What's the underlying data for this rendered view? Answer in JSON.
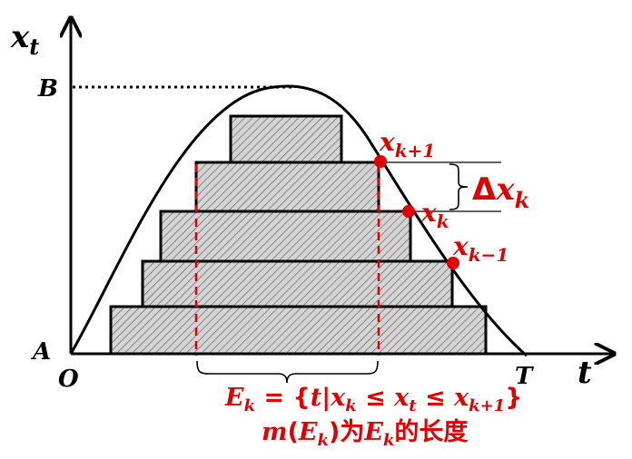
{
  "axes": {
    "y_label": "x",
    "y_label_sub": "t",
    "x_label": "t",
    "origin": "O",
    "A": "A",
    "B": "B",
    "T": "T"
  },
  "points": {
    "xk1": {
      "base": "x",
      "sub": "k+1"
    },
    "xk": {
      "base": "x",
      "sub": "k"
    },
    "xkm1": {
      "base": "x",
      "sub": "k−1"
    }
  },
  "delta": {
    "sym": "Δ",
    "base": "x",
    "sub": "k"
  },
  "set_def": {
    "E": "E",
    "E_sub": "k",
    "eq": " = {",
    "t1": "t",
    "bar": "|",
    "x1": "x",
    "x1_sub": "k",
    "le1": " ≤ ",
    "x2": "x",
    "x2_sub": "t",
    "le2": " ≤ ",
    "x3": "x",
    "x3_sub": "k+1",
    "close": "}"
  },
  "measure": {
    "m": "m",
    "open": "(",
    "E": "E",
    "E_sub": "k",
    "close": ")",
    "cn1": "为",
    "E2": "E",
    "E2_sub": "k",
    "cn2": "的长度"
  },
  "colors": {
    "accent": "#e00000",
    "hatch_fill": "#d9d9d9",
    "stroke": "#000000"
  }
}
